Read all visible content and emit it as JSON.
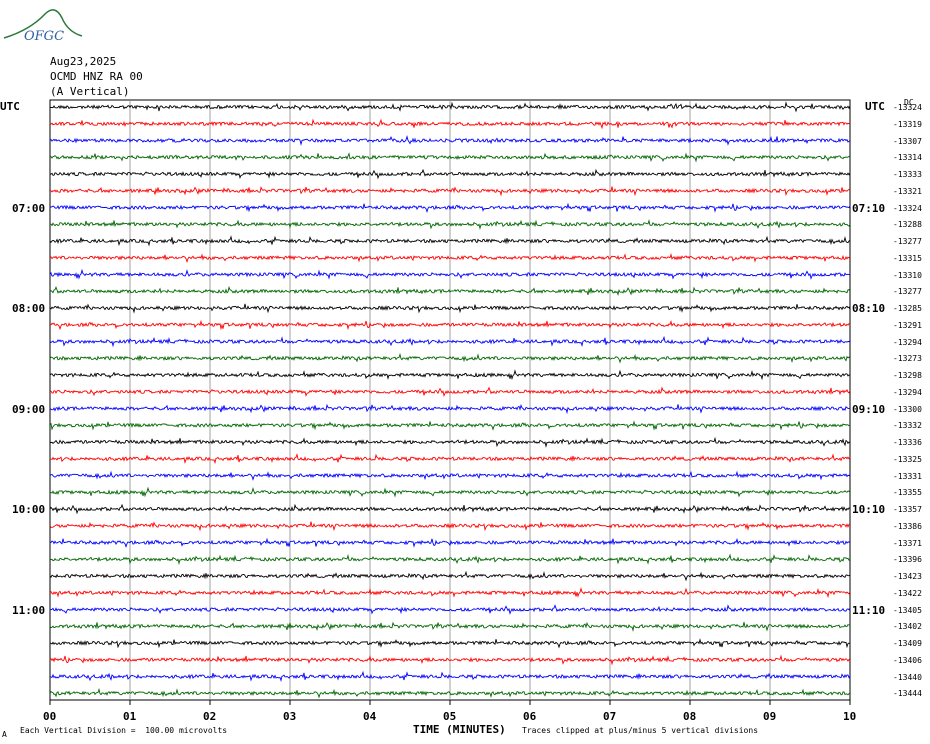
{
  "logo": {
    "text": "OFGC"
  },
  "header": {
    "date": "Aug23,2025",
    "station": "OCMD HNZ RA 00",
    "component": "(A Vertical)"
  },
  "left_label": "UTC",
  "right_label": "UTC",
  "corner_label": "DC",
  "footer": {
    "scale": "Each Vertical Division =  100.00 microvolts",
    "clip": "Traces clipped at plus/minus 5 vertical divisions",
    "corner_mark": "A"
  },
  "chart_data": {
    "type": "line",
    "title": "",
    "xlabel": "TIME (MINUTES)",
    "xlim": [
      0,
      10
    ],
    "x_ticks": [
      "00",
      "01",
      "02",
      "03",
      "04",
      "05",
      "06",
      "07",
      "08",
      "09",
      "10"
    ],
    "grid": true,
    "trace_colors": [
      "#000000",
      "#ff0000",
      "#0000ff",
      "#006600"
    ],
    "left_time_labels": [
      {
        "row": 6,
        "label": "07:00"
      },
      {
        "row": 12,
        "label": "08:00"
      },
      {
        "row": 18,
        "label": "09:00"
      },
      {
        "row": 24,
        "label": "10:00"
      },
      {
        "row": 30,
        "label": "11:00"
      }
    ],
    "right_time_labels": [
      {
        "row": 6,
        "label": "07:10"
      },
      {
        "row": 12,
        "label": "08:10"
      },
      {
        "row": 18,
        "label": "09:10"
      },
      {
        "row": 24,
        "label": "10:10"
      },
      {
        "row": 30,
        "label": "11:10"
      }
    ],
    "dc_offsets": [
      "-13324",
      "-13319",
      "-13307",
      "-13314",
      "-13333",
      "-13321",
      "-13324",
      "-13288",
      "-13277",
      "-13315",
      "-13310",
      "-13277",
      "-13285",
      "-13291",
      "-13294",
      "-13273",
      "-13298",
      "-13294",
      "-13300",
      "-13332",
      "-13336",
      "-13325",
      "-13331",
      "-13355",
      "-13357",
      "-13386",
      "-13371",
      "-13396",
      "-13423",
      "-13422",
      "-13405",
      "-13402",
      "-13409",
      "-13406",
      "-13440",
      "-13444"
    ]
  }
}
